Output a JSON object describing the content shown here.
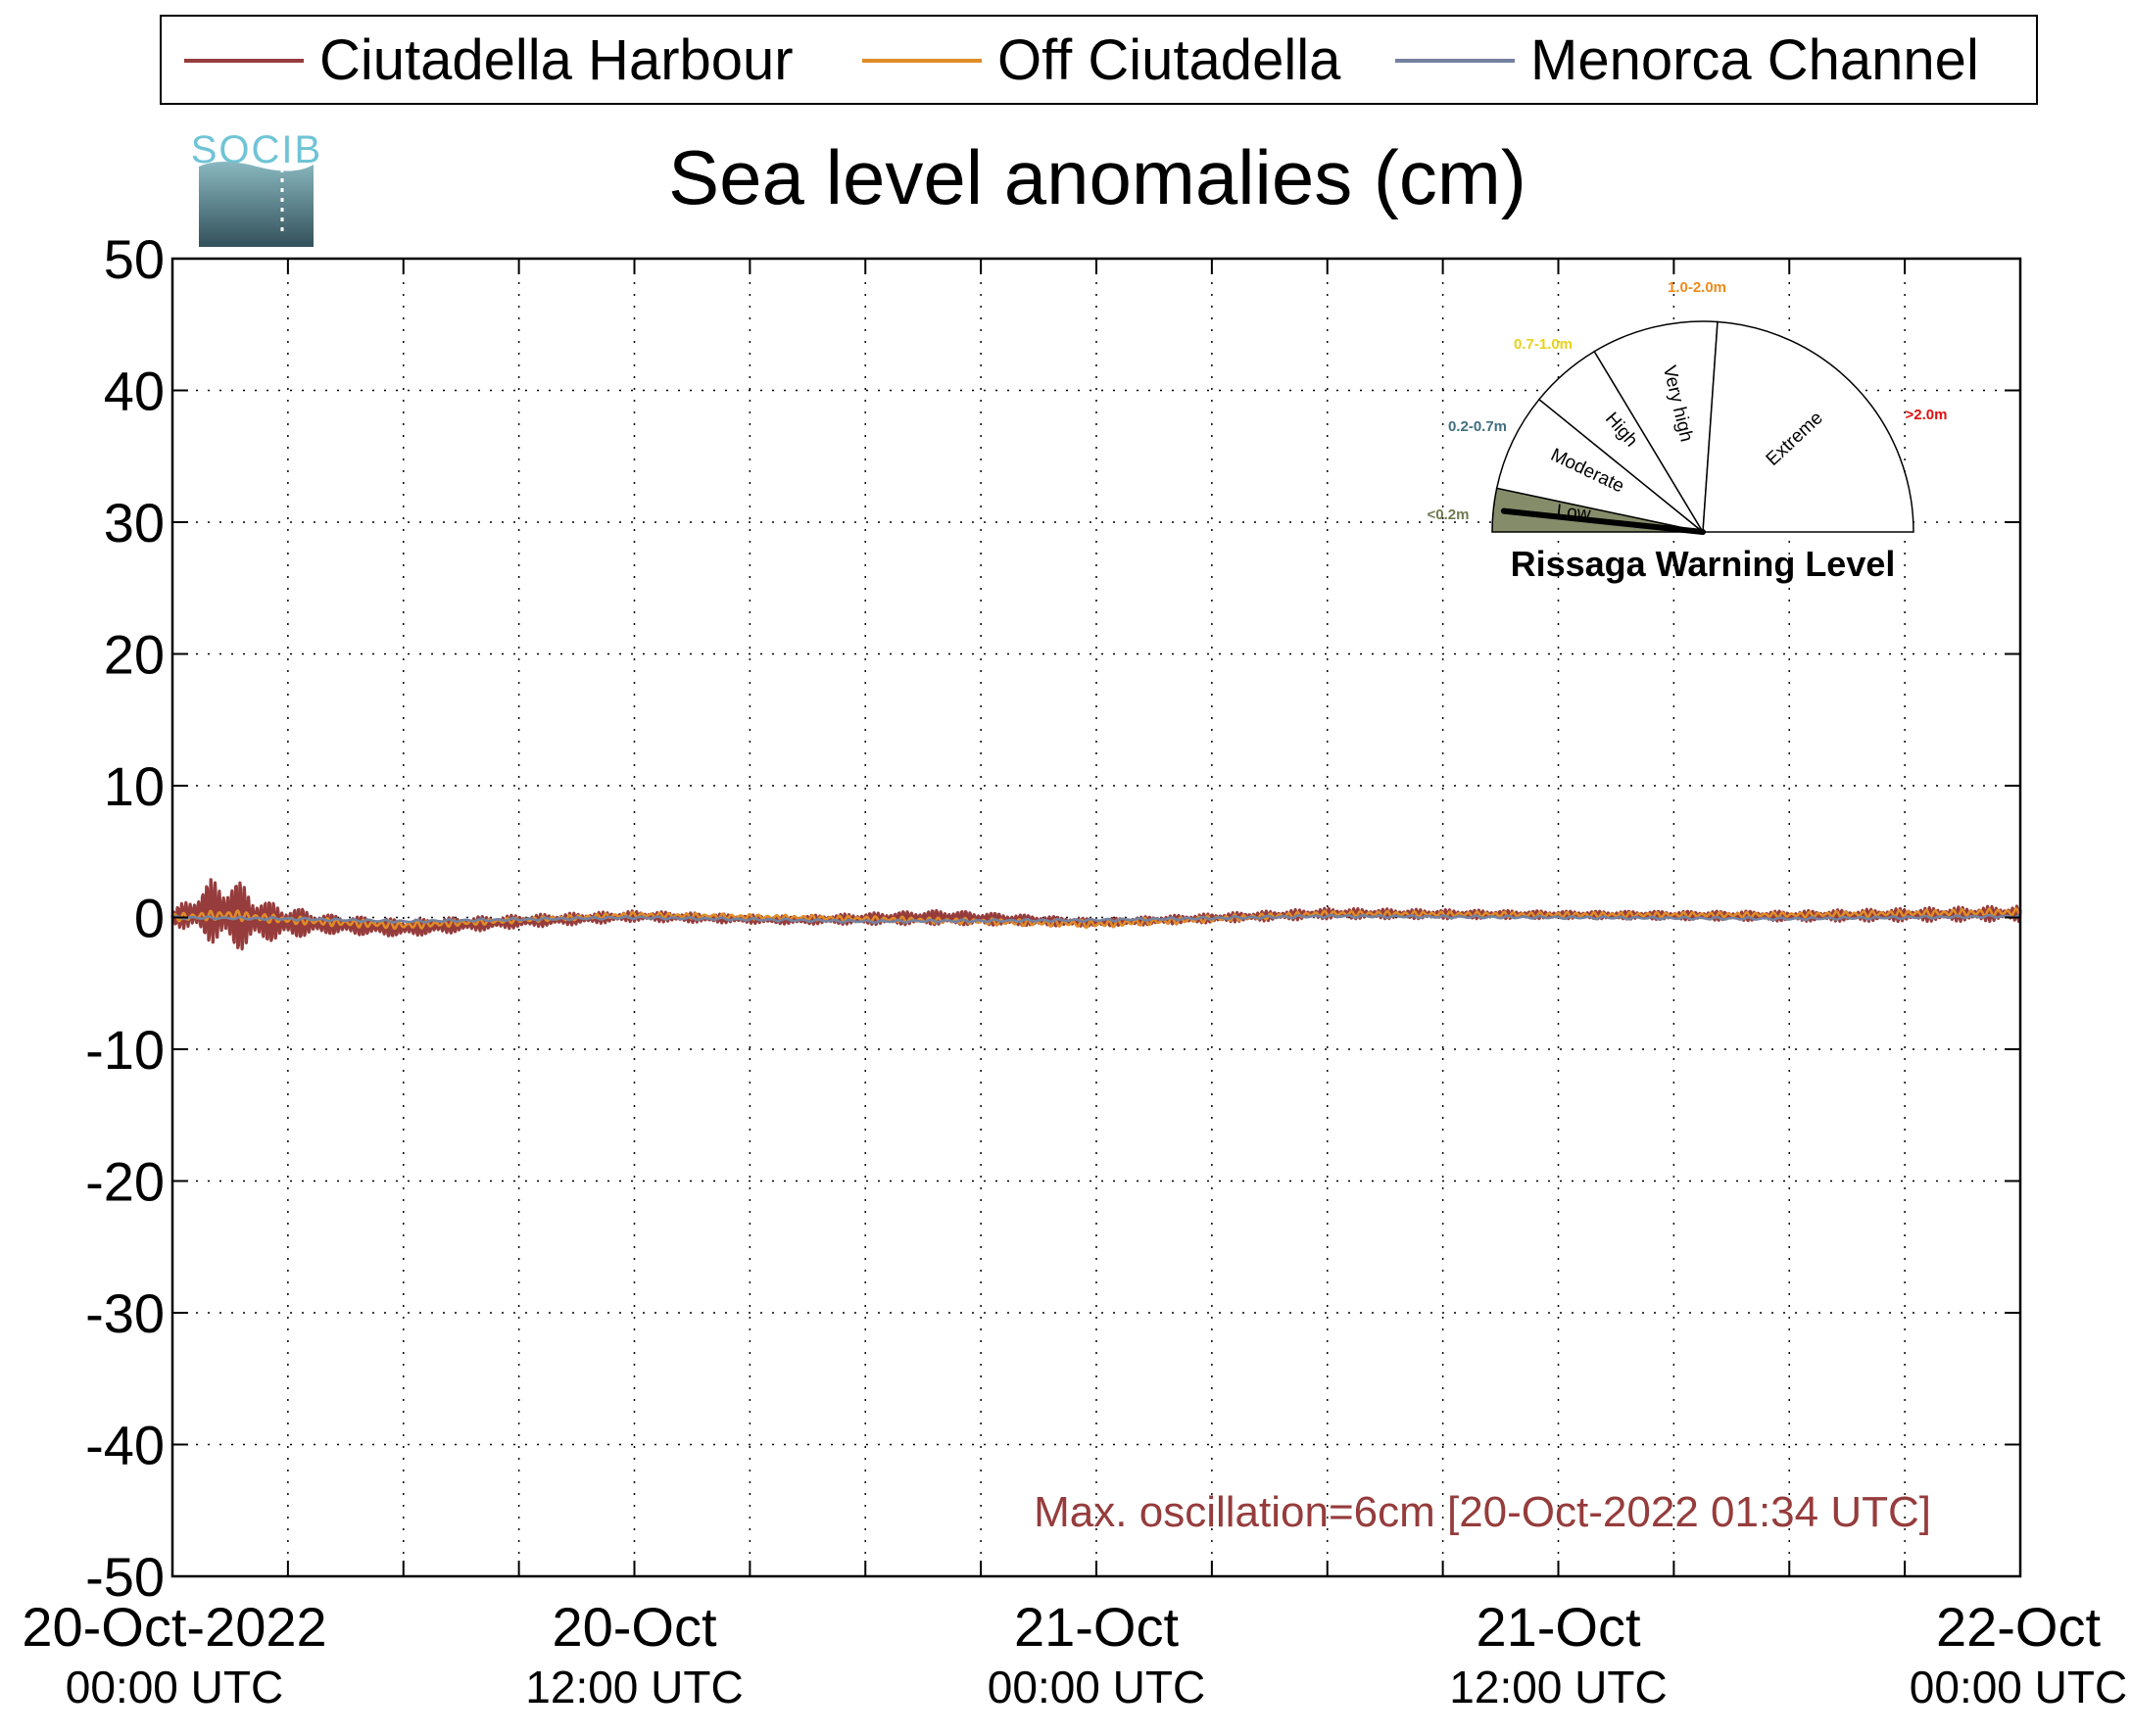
{
  "logo": {
    "text": "SOCIB"
  },
  "legend": {
    "items": [
      {
        "label": "Ciutadella Harbour",
        "color": "#963c3c"
      },
      {
        "label": "Off Ciutadella",
        "color": "#e08c28"
      },
      {
        "label": "Menorca Channel",
        "color": "#7482a0"
      }
    ]
  },
  "annotation": {
    "text": "Max. oscillation=6cm [20-Oct-2022 01:34 UTC]",
    "color": "#963c3c"
  },
  "gauge": {
    "title": "Rissaga Warning Level",
    "needle_level": "Low",
    "sectors": [
      {
        "name": "Low",
        "range": "<0.2m",
        "range_color": "#6f7a50",
        "fill": "#858c6a"
      },
      {
        "name": "Moderate",
        "range": "0.2-0.7m",
        "range_color": "#3f6f82",
        "fill": "#ffffff"
      },
      {
        "name": "High",
        "range": "0.7-1.0m",
        "range_color": "#e8d21a",
        "fill": "#ffffff"
      },
      {
        "name": "Very high",
        "range": "1.0-2.0m",
        "range_color": "#f08a1c",
        "fill": "#ffffff"
      },
      {
        "name": "Extreme",
        "range": ">2.0m",
        "range_color": "#e01010",
        "fill": "#ffffff"
      }
    ]
  },
  "chart_data": {
    "type": "line",
    "title": "Sea level anomalies (cm)",
    "xlabel": "",
    "ylabel": "",
    "ylim": [
      -50,
      50
    ],
    "yticks": [
      50,
      40,
      30,
      20,
      10,
      0,
      -10,
      -20,
      -30,
      -40,
      -50
    ],
    "xlim": [
      "2022-10-20 00:00",
      "2022-10-22 00:00"
    ],
    "x_tick_labels": [
      {
        "line1": "20-Oct-2022",
        "line2": "00:00 UTC"
      },
      {
        "line1": "20-Oct",
        "line2": "12:00 UTC"
      },
      {
        "line1": "21-Oct",
        "line2": "00:00 UTC"
      },
      {
        "line1": "21-Oct",
        "line2": "12:00 UTC"
      },
      {
        "line1": "22-Oct",
        "line2": "00:00 UTC"
      }
    ],
    "grid": true,
    "legend_position": "top",
    "series": [
      {
        "name": "Ciutadella Harbour",
        "x": [
          "2022-10-20 00:00",
          "2022-10-20 01:00",
          "2022-10-20 01:34",
          "2022-10-20 02:30",
          "2022-10-20 04:00",
          "2022-10-20 06:00",
          "2022-10-20 09:00",
          "2022-10-20 12:00",
          "2022-10-20 16:00",
          "2022-10-20 20:00",
          "2022-10-21 00:00",
          "2022-10-21 06:00",
          "2022-10-21 12:00",
          "2022-10-21 18:00",
          "2022-10-22 00:00"
        ],
        "y": [
          0.0,
          0.5,
          0.2,
          -0.3,
          -0.5,
          -0.8,
          -0.3,
          0.1,
          -0.2,
          0.0,
          -0.4,
          0.3,
          0.2,
          0.1,
          0.3
        ],
        "amplitude": [
          0.5,
          2.5,
          3.0,
          1.6,
          0.8,
          0.7,
          0.5,
          0.4,
          0.3,
          0.6,
          0.3,
          0.4,
          0.3,
          0.4,
          0.6
        ]
      },
      {
        "name": "Off Ciutadella",
        "x": [
          "2022-10-20 00:00",
          "2022-10-20 01:30",
          "2022-10-20 03:00",
          "2022-10-20 06:00",
          "2022-10-20 09:00",
          "2022-10-20 12:00",
          "2022-10-20 18:00",
          "2022-10-21 00:00",
          "2022-10-21 06:00",
          "2022-10-21 12:00",
          "2022-10-21 18:00",
          "2022-10-22 00:00"
        ],
        "y": [
          0.0,
          0.2,
          -0.2,
          -0.6,
          -0.2,
          0.2,
          -0.1,
          -0.5,
          0.3,
          0.2,
          0.2,
          0.4
        ],
        "amplitude": [
          0.3,
          0.4,
          0.3,
          0.3,
          0.2,
          0.2,
          0.2,
          0.3,
          0.2,
          0.2,
          0.2,
          0.3
        ]
      },
      {
        "name": "Menorca Channel",
        "x": [
          "2022-10-20 00:00",
          "2022-10-20 03:00",
          "2022-10-20 06:00",
          "2022-10-20 12:00",
          "2022-10-20 18:00",
          "2022-10-21 00:00",
          "2022-10-21 06:00",
          "2022-10-21 12:00",
          "2022-10-21 18:00",
          "2022-10-22 00:00"
        ],
        "y": [
          0.0,
          -0.1,
          -0.3,
          0.0,
          -0.3,
          -0.2,
          0.1,
          0.0,
          -0.1,
          0.1
        ],
        "amplitude": [
          0.1,
          0.1,
          0.1,
          0.1,
          0.1,
          0.1,
          0.1,
          0.1,
          0.1,
          0.1
        ]
      }
    ]
  }
}
